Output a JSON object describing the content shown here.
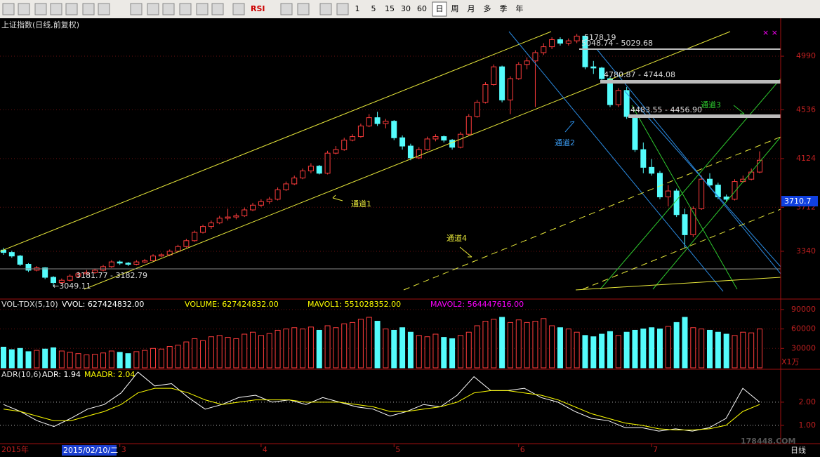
{
  "toolbar": {
    "rsi": "RSI",
    "periods": [
      "1",
      "5",
      "15",
      "30",
      "60",
      "日",
      "周",
      "月",
      "多",
      "季",
      "年"
    ]
  },
  "footer": {
    "year": "2015年",
    "cursor": "2015/02/10/二",
    "period": "日线",
    "watermark": "178448.COM"
  },
  "annotations": {
    "channel1": "通道1",
    "channel2": "通道2",
    "channel3": "通道3",
    "channel4": "通道4",
    "level_high": "5178.19",
    "band1": "5048.74 - 5029.68",
    "band2": "4780.87 - 4744.08",
    "band3": "4483.55 - 4456.90",
    "band_low": "3181.77 - 3182.79",
    "low": "←3049.11",
    "last": "3710.7"
  },
  "chart_data": [
    {
      "type": "candlestick",
      "title": "上证指数(日线,前复权)",
      "up_color": "#ff3c3c",
      "down_color": "#54fcfc",
      "ylim": [
        2942,
        5299
      ],
      "yticks": [
        4990,
        4536,
        4124,
        3712,
        3340
      ],
      "grid": true,
      "categories": [
        null,
        null,
        null,
        null,
        null,
        null,
        null,
        null,
        null,
        null,
        null,
        null,
        null,
        null,
        "3",
        null,
        null,
        null,
        null,
        null,
        null,
        null,
        null,
        null,
        null,
        null,
        null,
        null,
        null,
        null,
        null,
        "4",
        null,
        null,
        null,
        null,
        null,
        null,
        null,
        null,
        null,
        null,
        null,
        null,
        null,
        null,
        null,
        "5",
        null,
        null,
        null,
        null,
        null,
        null,
        null,
        null,
        null,
        null,
        null,
        null,
        null,
        null,
        "6",
        null,
        null,
        null,
        null,
        null,
        null,
        null,
        null,
        null,
        null,
        null,
        null,
        null,
        null,
        null,
        "7",
        null,
        null,
        null,
        null,
        null,
        null,
        null,
        null,
        null,
        null,
        null,
        null,
        null
      ],
      "ohlc": [
        [
          3350,
          3370,
          3310,
          3330
        ],
        [
          3330,
          3345,
          3285,
          3300
        ],
        [
          3300,
          3310,
          3215,
          3230
        ],
        [
          3230,
          3240,
          3165,
          3180
        ],
        [
          3180,
          3215,
          3170,
          3200
        ],
        [
          3200,
          3205,
          3105,
          3120
        ],
        [
          3120,
          3130,
          3049,
          3075
        ],
        [
          3075,
          3110,
          3060,
          3095
        ],
        [
          3095,
          3145,
          3085,
          3130
        ],
        [
          3130,
          3165,
          3120,
          3150
        ],
        [
          3150,
          3182,
          3140,
          3160
        ],
        [
          3160,
          3195,
          3150,
          3180
        ],
        [
          3180,
          3225,
          3170,
          3210
        ],
        [
          3210,
          3265,
          3200,
          3250
        ],
        [
          3250,
          3262,
          3225,
          3240
        ],
        [
          3240,
          3250,
          3215,
          3230
        ],
        [
          3230,
          3265,
          3222,
          3250
        ],
        [
          3250,
          3275,
          3240,
          3260
        ],
        [
          3260,
          3315,
          3255,
          3300
        ],
        [
          3300,
          3325,
          3290,
          3310
        ],
        [
          3310,
          3355,
          3300,
          3340
        ],
        [
          3340,
          3395,
          3330,
          3380
        ],
        [
          3380,
          3445,
          3370,
          3430
        ],
        [
          3430,
          3515,
          3420,
          3500
        ],
        [
          3500,
          3565,
          3490,
          3550
        ],
        [
          3550,
          3600,
          3530,
          3580
        ],
        [
          3580,
          3640,
          3570,
          3620
        ],
        [
          3620,
          3700,
          3600,
          3630
        ],
        [
          3630,
          3660,
          3610,
          3640
        ],
        [
          3640,
          3710,
          3630,
          3690
        ],
        [
          3690,
          3750,
          3680,
          3730
        ],
        [
          3730,
          3780,
          3715,
          3760
        ],
        [
          3760,
          3800,
          3740,
          3780
        ],
        [
          3780,
          3880,
          3770,
          3860
        ],
        [
          3860,
          3930,
          3850,
          3910
        ],
        [
          3910,
          3980,
          3900,
          3960
        ],
        [
          3960,
          4040,
          3950,
          4020
        ],
        [
          4020,
          4085,
          4000,
          4060
        ],
        [
          4060,
          4070,
          3990,
          4000
        ],
        [
          4000,
          4190,
          3990,
          4170
        ],
        [
          4170,
          4230,
          4160,
          4200
        ],
        [
          4200,
          4300,
          4190,
          4280
        ],
        [
          4280,
          4330,
          4270,
          4310
        ],
        [
          4310,
          4420,
          4300,
          4400
        ],
        [
          4400,
          4500,
          4390,
          4470
        ],
        [
          4470,
          4520,
          4400,
          4420
        ],
        [
          4420,
          4460,
          4380,
          4440
        ],
        [
          4440,
          4450,
          4280,
          4300
        ],
        [
          4300,
          4320,
          4200,
          4230
        ],
        [
          4230,
          4250,
          4110,
          4130
        ],
        [
          4130,
          4220,
          4120,
          4200
        ],
        [
          4200,
          4310,
          4190,
          4290
        ],
        [
          4290,
          4330,
          4270,
          4310
        ],
        [
          4310,
          4320,
          4260,
          4280
        ],
        [
          4280,
          4290,
          4200,
          4220
        ],
        [
          4220,
          4350,
          4210,
          4330
        ],
        [
          4330,
          4500,
          4320,
          4480
        ],
        [
          4480,
          4620,
          4470,
          4600
        ],
        [
          4600,
          4770,
          4590,
          4750
        ],
        [
          4750,
          4920,
          4740,
          4900
        ],
        [
          4900,
          4910,
          4600,
          4620
        ],
        [
          4620,
          4820,
          4500,
          4800
        ],
        [
          4800,
          4940,
          4790,
          4920
        ],
        [
          4920,
          4980,
          4880,
          4950
        ],
        [
          4950,
          5040,
          4560,
          5020
        ],
        [
          5020,
          5100,
          5000,
          5070
        ],
        [
          5070,
          5150,
          5050,
          5130
        ],
        [
          5130,
          5150,
          5080,
          5100
        ],
        [
          5100,
          5140,
          5080,
          5120
        ],
        [
          5120,
          5178,
          5100,
          5160
        ],
        [
          5160,
          5170,
          4880,
          4900
        ],
        [
          4900,
          4950,
          4840,
          4890
        ],
        [
          4890,
          4900,
          4780,
          4800
        ],
        [
          4800,
          4820,
          4560,
          4580
        ],
        [
          4580,
          4720,
          4560,
          4700
        ],
        [
          4700,
          4730,
          4460,
          4480
        ],
        [
          4480,
          4500,
          4180,
          4200
        ],
        [
          4200,
          4260,
          4000,
          4050
        ],
        [
          4050,
          4120,
          3980,
          4000
        ],
        [
          4000,
          4020,
          3780,
          3800
        ],
        [
          3800,
          3900,
          3720,
          3850
        ],
        [
          3850,
          3870,
          3630,
          3650
        ],
        [
          3650,
          3700,
          3370,
          3480
        ],
        [
          3480,
          3720,
          3460,
          3700
        ],
        [
          3700,
          3980,
          3690,
          3950
        ],
        [
          3950,
          4000,
          3880,
          3900
        ],
        [
          3900,
          3920,
          3780,
          3800
        ],
        [
          3800,
          3820,
          3760,
          3780
        ],
        [
          3780,
          3950,
          3770,
          3930
        ],
        [
          3930,
          3980,
          3920,
          3950
        ],
        [
          3950,
          4040,
          3940,
          4010
        ],
        [
          4010,
          4185,
          4000,
          4110
        ]
      ]
    },
    {
      "type": "bar",
      "title": "VOL-TDX(5,10)",
      "unit": "X1万",
      "legend": [
        {
          "name": "VVOL: 627424832.00",
          "color": "#ffffff"
        },
        {
          "name": "VOLUME: 627424832.00",
          "color": "#ffff00"
        },
        {
          "name": "MAVOL1: 551028352.00",
          "color": "#ffff00"
        },
        {
          "name": "MAVOL2: 564447616.00",
          "color": "#ff00ff"
        }
      ],
      "ylim": [
        0,
        104000
      ],
      "yticks": [
        90000,
        60000,
        30000
      ],
      "values": [
        32000,
        28000,
        30000,
        25000,
        27000,
        29000,
        31000,
        26000,
        24000,
        22000,
        20000,
        21000,
        23000,
        26000,
        24000,
        22000,
        25000,
        27000,
        30000,
        29000,
        33000,
        35000,
        40000,
        45000,
        42000,
        48000,
        50000,
        47000,
        45000,
        52000,
        55000,
        50000,
        53000,
        58000,
        60000,
        62000,
        60000,
        63000,
        58000,
        65000,
        62000,
        68000,
        70000,
        75000,
        78000,
        72000,
        60000,
        58000,
        62000,
        55000,
        50000,
        48000,
        52000,
        47000,
        45000,
        50000,
        55000,
        65000,
        72000,
        75000,
        78000,
        70000,
        74000,
        70000,
        72000,
        76000,
        65000,
        62000,
        60000,
        55000,
        50000,
        48000,
        52000,
        56000,
        50000,
        55000,
        58000,
        60000,
        62000,
        60000,
        64000,
        70000,
        78000,
        62000,
        60000,
        58000,
        55000,
        52000,
        50000,
        55000,
        54000,
        60000
      ]
    },
    {
      "type": "line",
      "title": "ADR(10,6)",
      "ylim": [
        0.21,
        3.36
      ],
      "yticks": [
        {
          "value": 2,
          "label": "2.00"
        },
        {
          "value": 1,
          "label": "1.00"
        }
      ],
      "series": [
        {
          "name": "ADR: 1.94",
          "color": "#ffffff",
          "values": [
            1.9,
            1.6,
            1.2,
            0.95,
            1.3,
            1.7,
            1.9,
            2.4,
            3.3,
            2.7,
            2.8,
            2.2,
            1.7,
            1.9,
            2.2,
            2.3,
            2.0,
            2.1,
            1.9,
            2.2,
            2.0,
            1.8,
            1.7,
            1.4,
            1.6,
            1.9,
            1.8,
            2.3,
            3.1,
            2.5,
            2.5,
            2.6,
            2.2,
            2.0,
            1.6,
            1.3,
            1.2,
            0.9,
            0.9,
            0.75,
            0.85,
            0.75,
            0.9,
            1.3,
            2.6,
            2.0
          ]
        },
        {
          "name": "MAADR: 2.04",
          "color": "#ffff00",
          "values": [
            1.7,
            1.6,
            1.4,
            1.2,
            1.2,
            1.4,
            1.6,
            1.9,
            2.4,
            2.6,
            2.6,
            2.4,
            2.1,
            1.9,
            2.0,
            2.1,
            2.1,
            2.1,
            2.0,
            2.0,
            2.0,
            1.9,
            1.8,
            1.6,
            1.6,
            1.7,
            1.8,
            2.0,
            2.4,
            2.5,
            2.5,
            2.4,
            2.3,
            2.1,
            1.8,
            1.5,
            1.3,
            1.1,
            1.0,
            0.85,
            0.8,
            0.8,
            0.85,
            1.0,
            1.6,
            1.9
          ]
        }
      ]
    }
  ]
}
